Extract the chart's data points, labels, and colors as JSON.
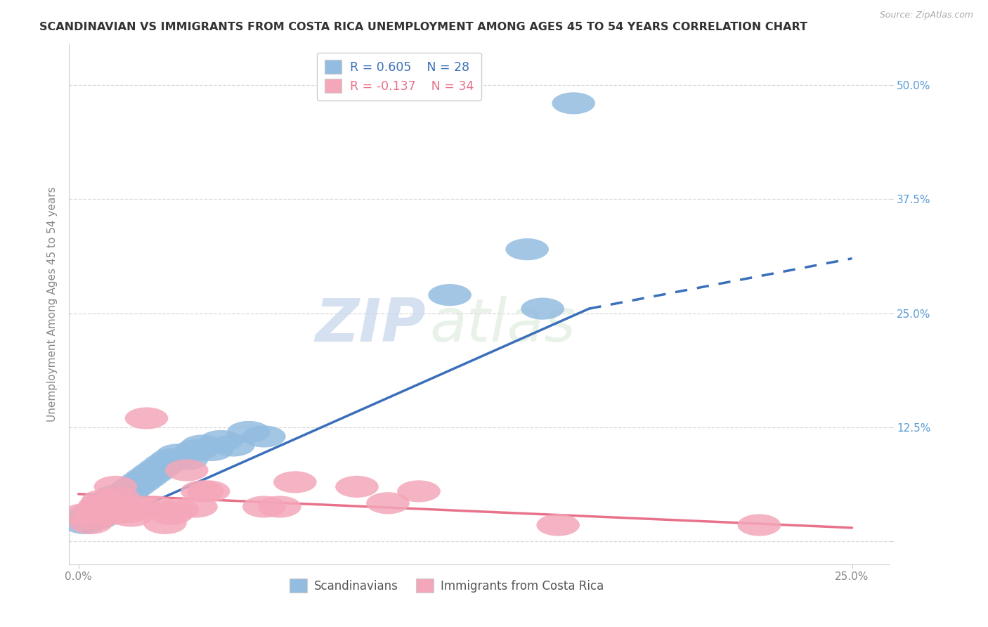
{
  "title": "SCANDINAVIAN VS IMMIGRANTS FROM COSTA RICA UNEMPLOYMENT AMONG AGES 45 TO 54 YEARS CORRELATION CHART",
  "source": "Source: ZipAtlas.com",
  "ylabel": "Unemployment Among Ages 45 to 54 years",
  "xlim": [
    -0.003,
    0.262
  ],
  "ylim": [
    -0.025,
    0.545
  ],
  "R_blue": 0.605,
  "N_blue": 28,
  "R_pink": -0.137,
  "N_pink": 34,
  "blue_color": "#92bce0",
  "pink_color": "#f4a7b9",
  "blue_line_color": "#3a6fba",
  "pink_line_color": "#e8728a",
  "grid_color": "#d8d8d8",
  "background_color": "#ffffff",
  "title_fontsize": 11.5,
  "label_fontsize": 11,
  "legend_fontsize": 12.5,
  "tick_label_fontsize": 11,
  "legend_top_labels": [
    "R = 0.605    N = 28",
    "R = -0.137    N = 34"
  ],
  "legend_bottom_labels": [
    "Scandinavians",
    "Immigrants from Costa Rica"
  ],
  "scatter_blue": [
    [
      0.002,
      0.02
    ],
    [
      0.004,
      0.03
    ],
    [
      0.006,
      0.025
    ],
    [
      0.008,
      0.035
    ],
    [
      0.01,
      0.045
    ],
    [
      0.012,
      0.05
    ],
    [
      0.014,
      0.04
    ],
    [
      0.016,
      0.055
    ],
    [
      0.018,
      0.06
    ],
    [
      0.02,
      0.065
    ],
    [
      0.022,
      0.07
    ],
    [
      0.024,
      0.075
    ],
    [
      0.026,
      0.08
    ],
    [
      0.028,
      0.085
    ],
    [
      0.03,
      0.09
    ],
    [
      0.032,
      0.095
    ],
    [
      0.035,
      0.09
    ],
    [
      0.038,
      0.1
    ],
    [
      0.04,
      0.105
    ],
    [
      0.043,
      0.1
    ],
    [
      0.046,
      0.11
    ],
    [
      0.05,
      0.105
    ],
    [
      0.055,
      0.12
    ],
    [
      0.06,
      0.115
    ],
    [
      0.12,
      0.27
    ],
    [
      0.145,
      0.32
    ],
    [
      0.15,
      0.255
    ],
    [
      0.16,
      0.48
    ]
  ],
  "scatter_pink": [
    [
      0.002,
      0.03
    ],
    [
      0.004,
      0.02
    ],
    [
      0.005,
      0.025
    ],
    [
      0.006,
      0.035
    ],
    [
      0.007,
      0.04
    ],
    [
      0.008,
      0.045
    ],
    [
      0.009,
      0.038
    ],
    [
      0.01,
      0.042
    ],
    [
      0.011,
      0.03
    ],
    [
      0.012,
      0.06
    ],
    [
      0.013,
      0.048
    ],
    [
      0.014,
      0.035
    ],
    [
      0.015,
      0.04
    ],
    [
      0.016,
      0.032
    ],
    [
      0.017,
      0.028
    ],
    [
      0.018,
      0.035
    ],
    [
      0.02,
      0.038
    ],
    [
      0.022,
      0.135
    ],
    [
      0.025,
      0.038
    ],
    [
      0.028,
      0.02
    ],
    [
      0.03,
      0.03
    ],
    [
      0.032,
      0.035
    ],
    [
      0.035,
      0.078
    ],
    [
      0.038,
      0.038
    ],
    [
      0.04,
      0.055
    ],
    [
      0.042,
      0.055
    ],
    [
      0.06,
      0.038
    ],
    [
      0.065,
      0.038
    ],
    [
      0.07,
      0.065
    ],
    [
      0.09,
      0.06
    ],
    [
      0.1,
      0.042
    ],
    [
      0.11,
      0.055
    ],
    [
      0.155,
      0.018
    ],
    [
      0.22,
      0.018
    ]
  ],
  "blue_solid_line": [
    [
      0.002,
      0.01
    ],
    [
      0.165,
      0.255
    ]
  ],
  "blue_dash_line": [
    [
      0.165,
      0.255
    ],
    [
      0.25,
      0.31
    ]
  ],
  "pink_solid_line": [
    [
      0.0,
      0.052
    ],
    [
      0.25,
      0.015
    ]
  ],
  "yticks": [
    0.0,
    0.125,
    0.25,
    0.375,
    0.5
  ],
  "ytick_labels": [
    "",
    "12.5%",
    "25.0%",
    "37.5%",
    "50.0%"
  ],
  "xtick_positions": [
    0.0,
    0.25
  ],
  "xtick_labels": [
    "0.0%",
    "25.0%"
  ]
}
